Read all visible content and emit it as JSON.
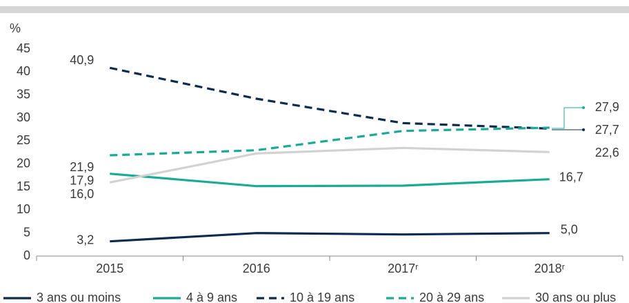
{
  "chart_data": {
    "type": "line",
    "y_axis_label": "%",
    "categories": [
      "2015",
      "2016",
      "2017ʳ",
      "2018ʳ"
    ],
    "ylim": [
      0,
      45
    ],
    "yticks": [
      0,
      5,
      10,
      15,
      20,
      25,
      30,
      35,
      40,
      45
    ],
    "grid": false,
    "legend": "bottom",
    "series": [
      {
        "name": "3 ans ou moins",
        "color": "#0d2b4e",
        "dash": false,
        "values": [
          3.2,
          5.0,
          4.7,
          5.0
        ],
        "value_labels": [
          "3,2",
          null,
          null,
          "5,0"
        ]
      },
      {
        "name": "4 à 9 ans",
        "color": "#1aab97",
        "dash": false,
        "values": [
          17.9,
          15.2,
          15.3,
          16.7
        ],
        "value_labels": [
          "17,9",
          null,
          null,
          "16,7"
        ]
      },
      {
        "name": "10 à 19 ans",
        "color": "#0d2b4e",
        "dash": true,
        "values": [
          40.9,
          34.2,
          28.9,
          27.7
        ],
        "value_labels": [
          "40,9",
          null,
          null,
          "27,7"
        ]
      },
      {
        "name": "20 à 29 ans",
        "color": "#1aab97",
        "dash": true,
        "values": [
          21.9,
          23.0,
          27.2,
          27.9
        ],
        "value_labels": [
          "21,9",
          null,
          null,
          "27,9"
        ]
      },
      {
        "name": "30 ans ou plus",
        "color": "#d2d2d2",
        "dash": false,
        "values": [
          16.0,
          22.3,
          23.5,
          22.6
        ],
        "value_labels": [
          "16,0",
          null,
          null,
          "22,6"
        ]
      }
    ]
  }
}
